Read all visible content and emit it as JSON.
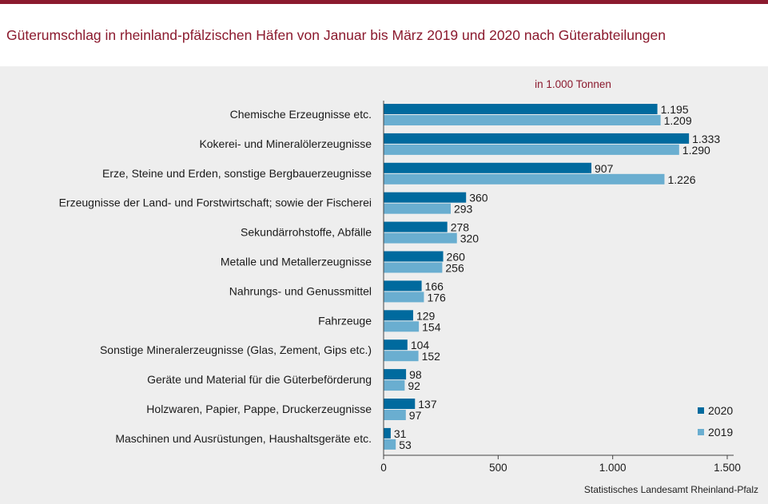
{
  "header": {
    "title": "Güterumschlag in rheinland-pfälzischen Häfen von Januar bis März 2019 und 2020 nach Güterabteilungen",
    "source": "Statistisches Landesamt Rheinland-Pfalz"
  },
  "colors": {
    "accent": "#8b1a2e",
    "panel_bg": "#eeeeee",
    "series_2020": "#006a9e",
    "series_2019": "#6aaed0",
    "text": "#1a1a1a"
  },
  "chart_data": {
    "type": "bar",
    "orientation": "horizontal",
    "unit_label": "in 1.000 Tonnen",
    "categories": [
      "Chemische Erzeugnisse etc.",
      "Kokerei- und Mineralölerzeugnisse",
      "Erze, Steine und Erden, sonstige Bergbauerzeugnisse",
      "Erzeugnisse der Land- und Forstwirtschaft; sowie der Fischerei",
      "Sekundärrohstoffe, Abfälle",
      "Metalle und Metallerzeugnisse",
      "Nahrungs- und Genussmittel",
      "Fahrzeuge",
      "Sonstige Mineralerzeugnisse (Glas, Zement, Gips etc.)",
      "Geräte und Material für die Güterbeförderung",
      "Holzwaren, Papier, Pappe, Druckerzeugnisse",
      "Maschinen und Ausrüstungen, Haushaltsgeräte etc."
    ],
    "series": [
      {
        "name": "2020",
        "values": [
          1195,
          1333,
          907,
          360,
          278,
          260,
          166,
          129,
          104,
          98,
          137,
          31
        ],
        "labels": [
          "1.195",
          "1.333",
          "907",
          "360",
          "278",
          "260",
          "166",
          "129",
          "104",
          "98",
          "137",
          "31"
        ]
      },
      {
        "name": "2019",
        "values": [
          1209,
          1290,
          1226,
          293,
          320,
          256,
          176,
          154,
          152,
          92,
          97,
          53
        ],
        "labels": [
          "1.209",
          "1.290",
          "1.226",
          "293",
          "320",
          "256",
          "176",
          "154",
          "152",
          "92",
          "97",
          "53"
        ]
      }
    ],
    "xlim": [
      0,
      1500
    ],
    "xticks": [
      0,
      500,
      1000,
      1500
    ],
    "xtick_labels": [
      "0",
      "500",
      "1.000",
      "1.500"
    ],
    "grid": false,
    "legend_position": "bottom-right"
  }
}
